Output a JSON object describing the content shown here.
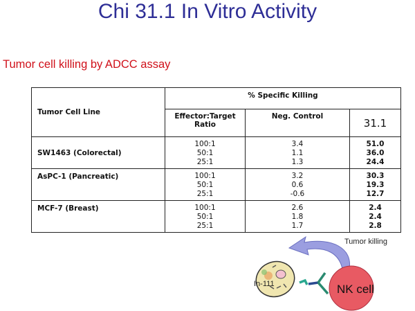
{
  "title": "Chi 31.1 In Vitro Activity",
  "subtitle": "Tumor cell killing by ADCC assay",
  "table": {
    "header_cell_line": "Tumor Cell Line",
    "header_group": "% Specific Killing",
    "header_ratio": "Effector:Target Ratio",
    "header_neg": "Neg. Control",
    "header_ab": "31.1",
    "rows": [
      {
        "cell_line": "SW1463 (Colorectal)",
        "ratios": [
          "100:1",
          "50:1",
          "25:1"
        ],
        "neg": [
          "3.4",
          "1.1",
          "1.3"
        ],
        "ab": [
          "51.0",
          "36.0",
          "24.4"
        ]
      },
      {
        "cell_line": "AsPC-1 (Pancreatic)",
        "ratios": [
          "100:1",
          "50:1",
          "25:1"
        ],
        "neg": [
          "3.2",
          "0.6",
          "-0.6"
        ],
        "ab": [
          "30.3",
          "19.3",
          "12.7"
        ]
      },
      {
        "cell_line": "MCF-7 (Breast)",
        "ratios": [
          "100:1",
          "50:1",
          "25:1"
        ],
        "neg": [
          "2.6",
          "1.8",
          "1.7"
        ],
        "ab": [
          "2.4",
          "2.4",
          "2.8"
        ]
      }
    ]
  },
  "figure": {
    "tumor_killing": "Tumor killing",
    "isotope": "In-111",
    "nk_cell": "NK cell",
    "colors": {
      "title": "#2e2e96",
      "subtitle": "#d0101a",
      "nk_cell": "#e85a63",
      "arrow": "#9b9ee0"
    }
  }
}
